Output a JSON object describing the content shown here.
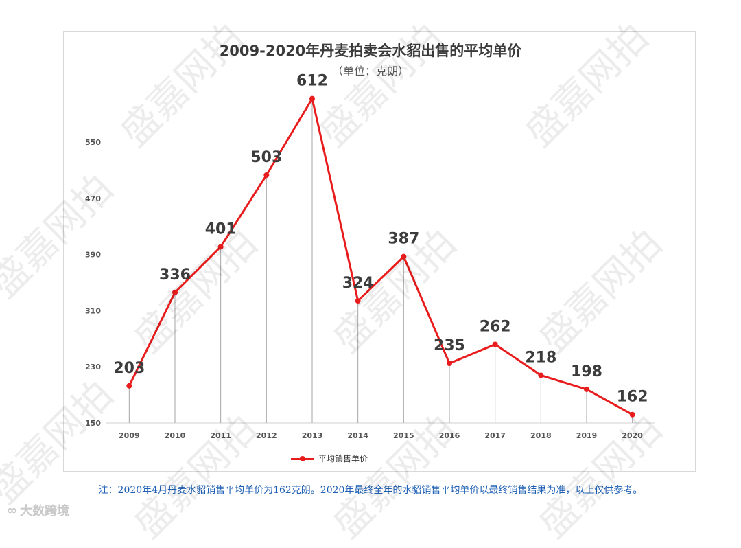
{
  "watermark": "盛嘉网拍",
  "title": "2009-2020年丹麦拍卖会水貂出售的平均单价",
  "subtitle": "（单位：克朗）",
  "note": "注：2020年4月丹麦水貂销售平均单价为162克朗。2020年最终全年的水貂销售平均单价以最终销售结果为准，以上仅供参考。",
  "logo": {
    "icon": "weibo-icon",
    "text": "大数跨境"
  },
  "legend": {
    "label": "平均销售单价",
    "color": "#e81c1c"
  },
  "chart_data": {
    "type": "line",
    "title": "2009-2020年丹麦拍卖会水貂出售的平均单价",
    "subtitle": "（单位：克朗）",
    "xlabel": "",
    "ylabel": "",
    "x": [
      "2009",
      "2010",
      "2011",
      "2012",
      "2013",
      "2014",
      "2015",
      "2016",
      "2017",
      "2018",
      "2019",
      "2020"
    ],
    "series": [
      {
        "name": "平均销售单价",
        "values": [
          203,
          336,
          401,
          503,
          612,
          324,
          387,
          235,
          262,
          218,
          198,
          162
        ],
        "color": "#e81c1c"
      }
    ],
    "yticks": [
      150,
      230,
      310,
      390,
      470,
      550
    ],
    "ylim": [
      150,
      550
    ],
    "grid": false,
    "drop_lines": true,
    "data_labels": true,
    "legend_position": "bottom"
  }
}
